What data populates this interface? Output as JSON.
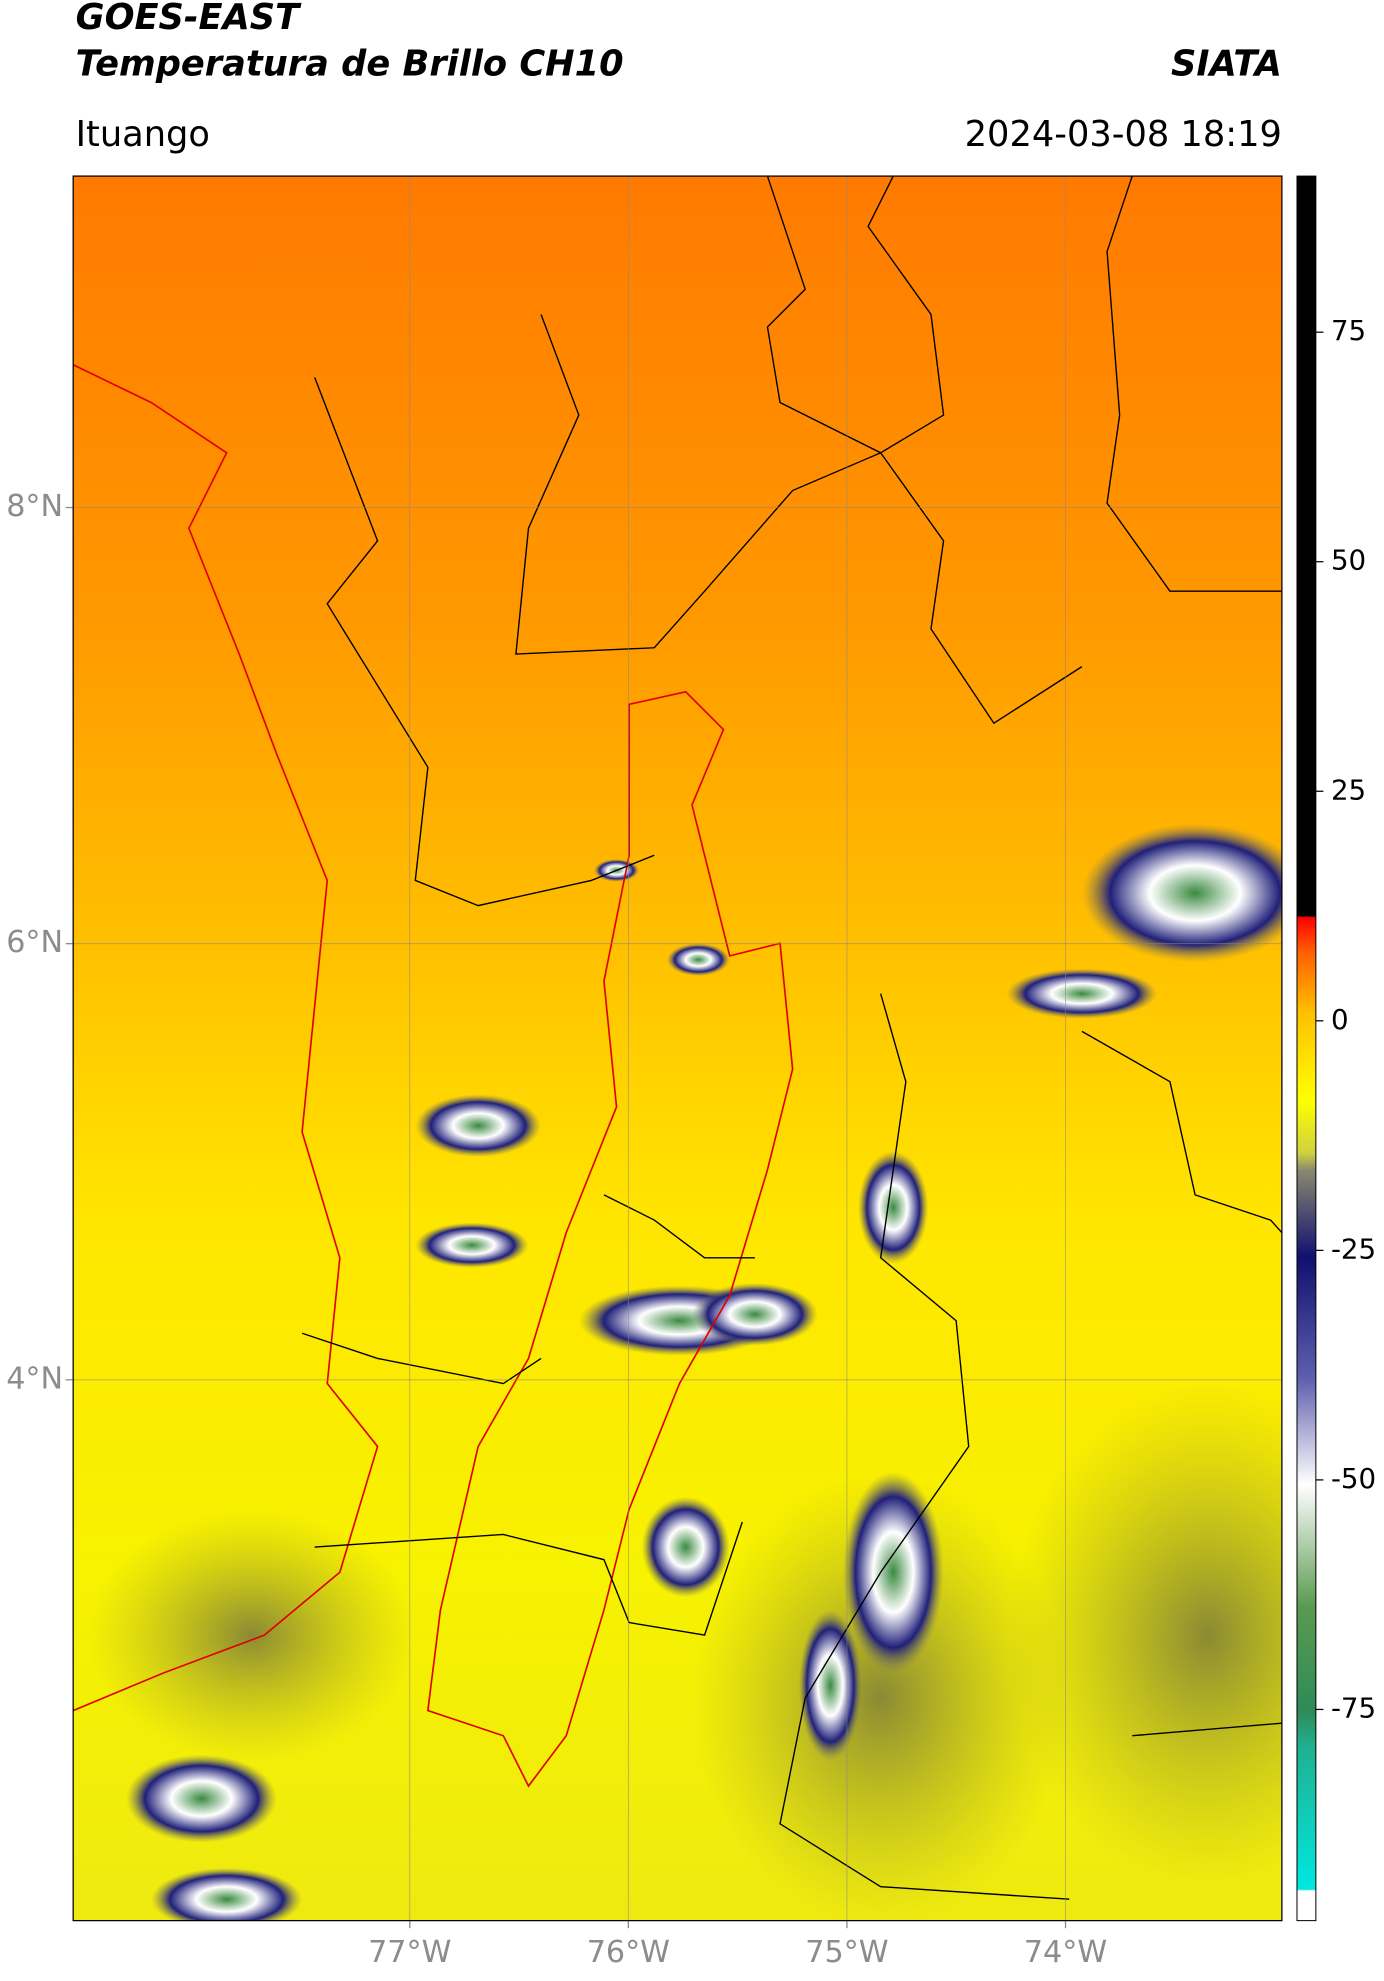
{
  "header": {
    "title": "GOES-EAST",
    "subtitle": "Temperatura de Brillo CH10",
    "source": "SIATA",
    "location": "Ituango",
    "datetime": "2024-03-08 18:19"
  },
  "map": {
    "xlim": [
      -78.54,
      -73.01
    ],
    "ylim": [
      1.52,
      9.52
    ],
    "xticks": [
      {
        "value": -77,
        "label": "77°W"
      },
      {
        "value": -76,
        "label": "76°W"
      },
      {
        "value": -75,
        "label": "75°W"
      },
      {
        "value": -74,
        "label": "74°W"
      }
    ],
    "yticks": [
      {
        "value": 8,
        "label": "8°N"
      },
      {
        "value": 6,
        "label": "6°N"
      },
      {
        "value": 4,
        "label": "4°N"
      }
    ],
    "grid": true
  },
  "colorbar": {
    "lim": [
      -98,
      92
    ],
    "ticks": [
      75,
      50,
      25,
      0,
      -25,
      -50,
      -75
    ]
  }
}
